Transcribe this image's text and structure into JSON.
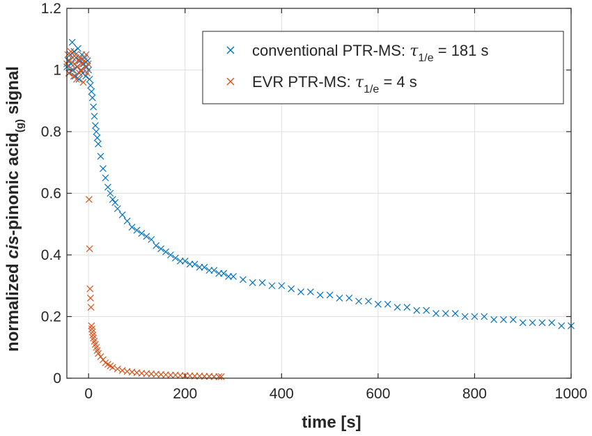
{
  "chart_data": {
    "type": "scatter",
    "xlabel": "time [s]",
    "ylabel": {
      "prefix": "normalized  ",
      "italic": "cis",
      "middle": "-pinonic acid",
      "subscript": "(g)",
      "suffix": " signal"
    },
    "xlim": [
      -45,
      1000
    ],
    "ylim": [
      0,
      1.2
    ],
    "xticks": [
      0,
      200,
      400,
      600,
      800,
      1000
    ],
    "xtick_labels": [
      "0",
      "200",
      "400",
      "600",
      "800",
      "1000"
    ],
    "yticks": [
      0,
      0.2,
      0.4,
      0.6,
      0.8,
      1.0,
      1.2
    ],
    "ytick_labels": [
      "0",
      "0.2",
      "0.4",
      "0.6",
      "0.8",
      "1",
      "1.2"
    ],
    "grid": true,
    "legend_position": "top-right",
    "marker": "x",
    "series": [
      {
        "name": "conventional PTR-MS",
        "legend": {
          "prefix": "conventional PTR-MS: ",
          "tau": "τ",
          "tau_sub": "1/e",
          "suffix": " = 181 s"
        },
        "color": "#0072BD",
        "points": [
          [
            -45,
            1.01
          ],
          [
            -42,
            1.03
          ],
          [
            -40,
            0.99
          ],
          [
            -38,
            1.05
          ],
          [
            -36,
            1.02
          ],
          [
            -34,
            1.09
          ],
          [
            -32,
            1.0
          ],
          [
            -30,
            1.06
          ],
          [
            -28,
            0.98
          ],
          [
            -26,
            1.04
          ],
          [
            -24,
            1.01
          ],
          [
            -22,
            1.07
          ],
          [
            -20,
            0.97
          ],
          [
            -18,
            1.03
          ],
          [
            -16,
            1.0
          ],
          [
            -14,
            1.05
          ],
          [
            -12,
            0.99
          ],
          [
            -10,
            1.02
          ],
          [
            -8,
            1.04
          ],
          [
            -6,
            0.98
          ],
          [
            -4,
            1.01
          ],
          [
            -2,
            1.03
          ],
          [
            0,
            1.0
          ],
          [
            2,
            0.97
          ],
          [
            4,
            0.95
          ],
          [
            6,
            0.93
          ],
          [
            8,
            0.91
          ],
          [
            10,
            0.88
          ],
          [
            12,
            0.85
          ],
          [
            14,
            0.82
          ],
          [
            16,
            0.8
          ],
          [
            18,
            0.78
          ],
          [
            20,
            0.76
          ],
          [
            25,
            0.72
          ],
          [
            30,
            0.68
          ],
          [
            35,
            0.65
          ],
          [
            40,
            0.62
          ],
          [
            45,
            0.6
          ],
          [
            50,
            0.58
          ],
          [
            55,
            0.57
          ],
          [
            60,
            0.55
          ],
          [
            70,
            0.53
          ],
          [
            80,
            0.51
          ],
          [
            90,
            0.49
          ],
          [
            100,
            0.48
          ],
          [
            110,
            0.47
          ],
          [
            120,
            0.46
          ],
          [
            130,
            0.45
          ],
          [
            140,
            0.43
          ],
          [
            150,
            0.42
          ],
          [
            160,
            0.41
          ],
          [
            170,
            0.4
          ],
          [
            180,
            0.39
          ],
          [
            190,
            0.38
          ],
          [
            200,
            0.38
          ],
          [
            210,
            0.37
          ],
          [
            220,
            0.37
          ],
          [
            230,
            0.36
          ],
          [
            240,
            0.36
          ],
          [
            250,
            0.35
          ],
          [
            260,
            0.35
          ],
          [
            270,
            0.34
          ],
          [
            280,
            0.34
          ],
          [
            290,
            0.33
          ],
          [
            300,
            0.33
          ],
          [
            320,
            0.32
          ],
          [
            340,
            0.31
          ],
          [
            360,
            0.31
          ],
          [
            380,
            0.3
          ],
          [
            400,
            0.3
          ],
          [
            420,
            0.29
          ],
          [
            440,
            0.28
          ],
          [
            460,
            0.28
          ],
          [
            480,
            0.27
          ],
          [
            500,
            0.27
          ],
          [
            520,
            0.26
          ],
          [
            540,
            0.26
          ],
          [
            560,
            0.25
          ],
          [
            580,
            0.25
          ],
          [
            600,
            0.24
          ],
          [
            620,
            0.24
          ],
          [
            640,
            0.23
          ],
          [
            660,
            0.23
          ],
          [
            680,
            0.22
          ],
          [
            700,
            0.22
          ],
          [
            720,
            0.21
          ],
          [
            740,
            0.21
          ],
          [
            760,
            0.21
          ],
          [
            780,
            0.2
          ],
          [
            800,
            0.2
          ],
          [
            820,
            0.2
          ],
          [
            840,
            0.19
          ],
          [
            860,
            0.19
          ],
          [
            880,
            0.19
          ],
          [
            900,
            0.18
          ],
          [
            920,
            0.18
          ],
          [
            940,
            0.18
          ],
          [
            960,
            0.18
          ],
          [
            980,
            0.17
          ],
          [
            1000,
            0.17
          ]
        ]
      },
      {
        "name": "EVR PTR-MS",
        "legend": {
          "prefix": "EVR PTR-MS: ",
          "tau": "τ",
          "tau_sub": "1/e",
          "suffix": " = 4 s"
        },
        "color": "#D95319",
        "points": [
          [
            -45,
            1.02
          ],
          [
            -43,
            1.05
          ],
          [
            -41,
            0.99
          ],
          [
            -39,
            1.03
          ],
          [
            -37,
            1.06
          ],
          [
            -35,
            1.0
          ],
          [
            -33,
            1.04
          ],
          [
            -31,
            0.98
          ],
          [
            -29,
            1.02
          ],
          [
            -27,
            1.05
          ],
          [
            -25,
            0.97
          ],
          [
            -23,
            1.01
          ],
          [
            -21,
            1.03
          ],
          [
            -19,
            0.99
          ],
          [
            -17,
            1.04
          ],
          [
            -15,
            1.0
          ],
          [
            -13,
            1.02
          ],
          [
            -11,
            0.96
          ],
          [
            -9,
            1.03
          ],
          [
            -7,
            1.01
          ],
          [
            -5,
            1.05
          ],
          [
            -3,
            0.99
          ],
          [
            -1,
            1.02
          ],
          [
            1,
            0.58
          ],
          [
            2,
            0.42
          ],
          [
            3,
            0.29
          ],
          [
            4,
            0.26
          ],
          [
            5,
            0.23
          ],
          [
            6,
            0.17
          ],
          [
            7,
            0.16
          ],
          [
            8,
            0.15
          ],
          [
            9,
            0.14
          ],
          [
            10,
            0.13
          ],
          [
            12,
            0.12
          ],
          [
            14,
            0.11
          ],
          [
            16,
            0.1
          ],
          [
            18,
            0.09
          ],
          [
            20,
            0.08
          ],
          [
            25,
            0.07
          ],
          [
            30,
            0.06
          ],
          [
            35,
            0.05
          ],
          [
            40,
            0.045
          ],
          [
            45,
            0.04
          ],
          [
            50,
            0.035
          ],
          [
            60,
            0.03
          ],
          [
            70,
            0.025
          ],
          [
            80,
            0.022
          ],
          [
            90,
            0.02
          ],
          [
            100,
            0.018
          ],
          [
            110,
            0.016
          ],
          [
            120,
            0.015
          ],
          [
            130,
            0.014
          ],
          [
            140,
            0.013
          ],
          [
            150,
            0.012
          ],
          [
            160,
            0.011
          ],
          [
            170,
            0.01
          ],
          [
            180,
            0.01
          ],
          [
            190,
            0.009
          ],
          [
            200,
            0.008
          ],
          [
            210,
            0.008
          ],
          [
            220,
            0.007
          ],
          [
            230,
            0.007
          ],
          [
            240,
            0.006
          ],
          [
            250,
            0.006
          ],
          [
            260,
            0.005
          ],
          [
            270,
            0.005
          ],
          [
            275,
            0.005
          ]
        ]
      }
    ]
  }
}
